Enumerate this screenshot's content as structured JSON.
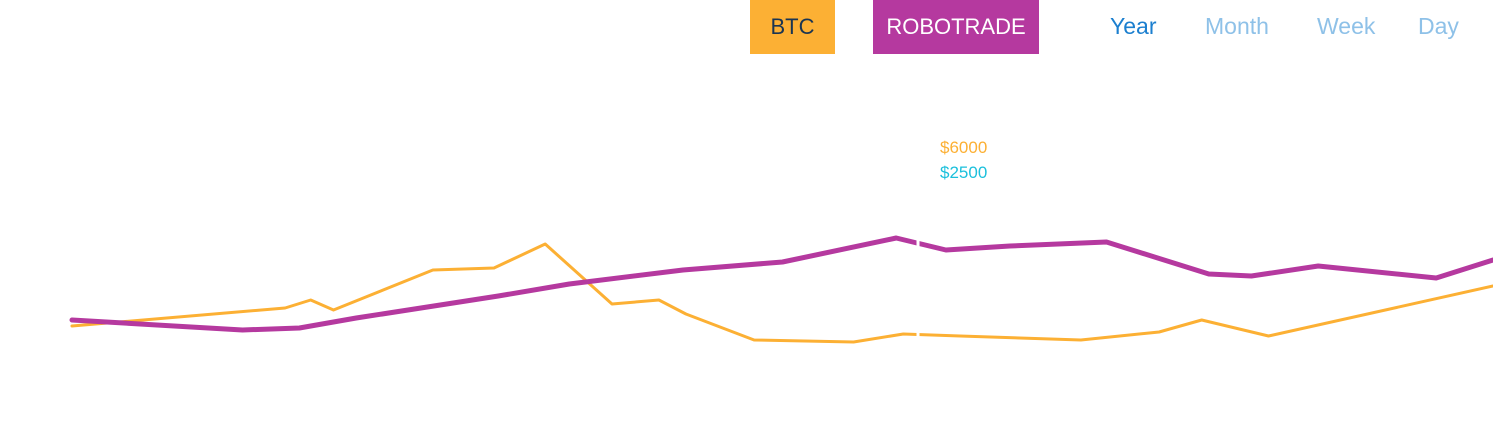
{
  "legend": {
    "btc_label": "BTC",
    "robotrade_label": "ROBOTRADE"
  },
  "periods": {
    "year": "Year",
    "month": "Month",
    "week": "Week",
    "day": "Day",
    "active": "year"
  },
  "tooltip": {
    "btc_value": "$6000",
    "robotrade_value": "$2500"
  },
  "colors": {
    "btc": "#fcb034",
    "robotrade": "#b5399f",
    "active_period": "#1b7fcf",
    "inactive_period": "#8ec1e8",
    "tooltip_second": "#1cc0dc"
  },
  "chart_data": {
    "type": "line",
    "xlabel": "",
    "ylabel": "",
    "grid": false,
    "xlim": [
      0,
      1
    ],
    "ylim": [
      0,
      1
    ],
    "series": [
      {
        "name": "BTC",
        "color": "#fcb034",
        "points": [
          [
            0.0,
            0.27
          ],
          [
            0.15,
            0.36
          ],
          [
            0.168,
            0.4
          ],
          [
            0.184,
            0.35
          ],
          [
            0.254,
            0.55
          ],
          [
            0.297,
            0.56
          ],
          [
            0.333,
            0.68
          ],
          [
            0.38,
            0.38
          ],
          [
            0.413,
            0.4
          ],
          [
            0.432,
            0.33
          ],
          [
            0.48,
            0.2
          ],
          [
            0.55,
            0.19
          ],
          [
            0.585,
            0.23
          ],
          [
            0.625,
            0.22
          ],
          [
            0.71,
            0.2
          ],
          [
            0.765,
            0.24
          ],
          [
            0.795,
            0.3
          ],
          [
            0.842,
            0.22
          ],
          [
            1.0,
            0.47
          ]
        ]
      },
      {
        "name": "ROBOTRADE",
        "color": "#b5399f",
        "points": [
          [
            0.0,
            0.3
          ],
          [
            0.12,
            0.25
          ],
          [
            0.16,
            0.26
          ],
          [
            0.2,
            0.31
          ],
          [
            0.3,
            0.42
          ],
          [
            0.35,
            0.48
          ],
          [
            0.43,
            0.55
          ],
          [
            0.5,
            0.59
          ],
          [
            0.58,
            0.71
          ],
          [
            0.615,
            0.65
          ],
          [
            0.66,
            0.67
          ],
          [
            0.728,
            0.69
          ],
          [
            0.8,
            0.53
          ],
          [
            0.83,
            0.52
          ],
          [
            0.877,
            0.57
          ],
          [
            0.96,
            0.51
          ],
          [
            1.0,
            0.6
          ]
        ]
      }
    ]
  }
}
